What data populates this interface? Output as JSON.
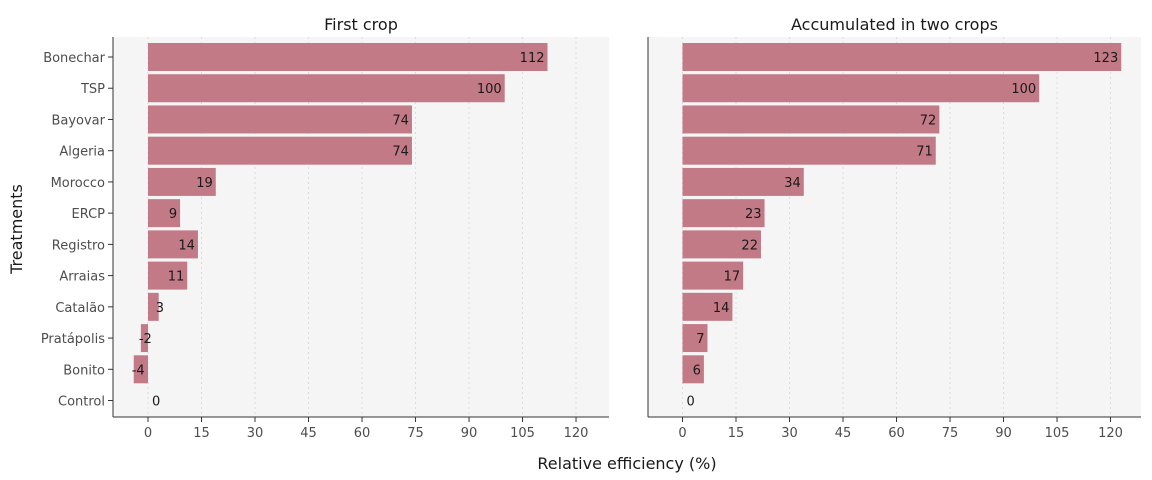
{
  "chart_data": {
    "type": "bar",
    "orientation": "horizontal",
    "xlabel": "Relative efficiency (%)",
    "ylabel": "Treatments",
    "xlim": [
      -7,
      128
    ],
    "xticks": [
      0,
      15,
      30,
      45,
      60,
      75,
      90,
      105,
      120
    ],
    "grid": "vertical dotted",
    "categories": [
      "Bonechar",
      "TSP",
      "Bayovar",
      "Algeria",
      "Morocco",
      "ERCP",
      "Registro",
      "Arraias",
      "Catalão",
      "Pratápolis",
      "Bonito",
      "Control"
    ],
    "bar_color": "#c27a87",
    "panels": [
      {
        "title": "First crop",
        "values": [
          112,
          100,
          74,
          74,
          19,
          9,
          14,
          11,
          3,
          -2,
          -4,
          0
        ]
      },
      {
        "title": "Accumulated in two crops",
        "values": [
          123,
          100,
          72,
          71,
          34,
          23,
          22,
          17,
          14,
          7,
          6,
          0
        ]
      }
    ]
  }
}
